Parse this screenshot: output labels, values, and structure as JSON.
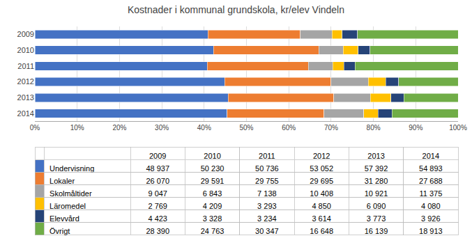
{
  "chart_data": [
    {
      "type": "bar",
      "title": "Kostnader i kommunal grundskola, kr/elev Vindeln",
      "orientation": "horizontal",
      "stacked": true,
      "grid": true,
      "categories": [
        "2009",
        "2010",
        "2011",
        "2012",
        "2013",
        "2014"
      ],
      "series": [
        {
          "name": "Undervisning",
          "color": "#4472C4",
          "values": [
            40.9049,
            42.2229,
            40.7508,
            44.8578,
            45.6961,
            45.413
          ]
        },
        {
          "name": "Lokaler",
          "color": "#ED7D31",
          "values": [
            21.7911,
            24.8739,
            23.899,
            25.1084,
            24.9055,
            22.9063
          ]
        },
        {
          "name": "Skolmåltider",
          "color": "#A5A5A5",
          "values": [
            7.5621,
            5.7522,
            5.7332,
            8.8004,
            8.6954,
            9.4105
          ]
        },
        {
          "name": "Läromedel",
          "color": "#FFC000",
          "values": [
            2.3145,
            3.538,
            2.6449,
            4.1009,
            4.8489,
            3.3754
          ]
        },
        {
          "name": "Elevvård",
          "color": "#264478",
          "values": [
            3.697,
            2.7975,
            2.5975,
            3.0558,
            3.0041,
            3.248
          ]
        },
        {
          "name": "Övrigt",
          "color": "#70AD47",
          "values": [
            23.7303,
            20.8155,
            24.3745,
            14.0766,
            12.85,
            15.6467
          ]
        }
      ],
      "xlim": [
        0,
        100
      ],
      "xticks": [
        {
          "value": 0,
          "label": "0%"
        },
        {
          "value": 10,
          "label": "10%"
        },
        {
          "value": 20,
          "label": "20%"
        },
        {
          "value": 30,
          "label": "30%"
        },
        {
          "value": 40,
          "label": "40%"
        },
        {
          "value": 50,
          "label": "50%"
        },
        {
          "value": 60,
          "label": "60%"
        },
        {
          "value": 70,
          "label": "70%"
        },
        {
          "value": 80,
          "label": "80%"
        },
        {
          "value": 90,
          "label": "90%"
        },
        {
          "value": 100,
          "label": "100%"
        }
      ]
    },
    {
      "type": "table",
      "categories": [
        "2009",
        "2010",
        "2011",
        "2012",
        "2013",
        "2014"
      ],
      "series": [
        {
          "name": "Undervisning",
          "color": "#4472C4",
          "values": [
            48937,
            50230,
            50736,
            53052,
            57392,
            54893
          ],
          "value_labels": [
            "48 937",
            "50 230",
            "50 736",
            "53 052",
            "57 392",
            "54 893"
          ]
        },
        {
          "name": "Lokaler",
          "color": "#ED7D31",
          "values": [
            26070,
            29591,
            29755,
            29695,
            31280,
            27688
          ],
          "value_labels": [
            "26 070",
            "29 591",
            "29 755",
            "29 695",
            "31 280",
            "27 688"
          ]
        },
        {
          "name": "Skolmåltider",
          "color": "#A5A5A5",
          "values": [
            9047,
            6843,
            7138,
            10408,
            10921,
            11375
          ],
          "value_labels": [
            "9 047",
            "6 843",
            "7 138",
            "10 408",
            "10 921",
            "11 375"
          ]
        },
        {
          "name": "Läromedel",
          "color": "#FFC000",
          "values": [
            2769,
            4209,
            3293,
            4850,
            6090,
            4080
          ],
          "value_labels": [
            "2 769",
            "4 209",
            "3 293",
            "4 850",
            "6 090",
            "4 080"
          ]
        },
        {
          "name": "Elevvård",
          "color": "#264478",
          "values": [
            4423,
            3328,
            3234,
            3614,
            3773,
            3926
          ],
          "value_labels": [
            "4 423",
            "3 328",
            "3 234",
            "3 614",
            "3 773",
            "3 926"
          ]
        },
        {
          "name": "Övrigt",
          "color": "#70AD47",
          "values": [
            28390,
            24763,
            30347,
            16648,
            16139,
            18913
          ],
          "value_labels": [
            "28 390",
            "24 763",
            "30 347",
            "16 648",
            "16 139",
            "18 913"
          ]
        }
      ]
    }
  ]
}
